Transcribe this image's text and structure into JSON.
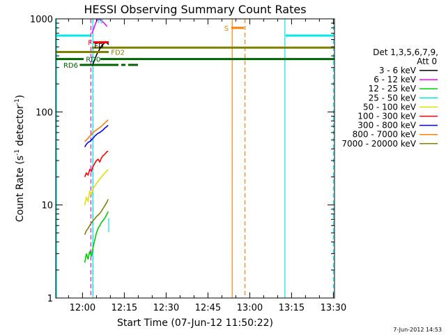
{
  "chart_data": {
    "type": "line",
    "title": "HESSI Observing Summary Count Rates",
    "xlabel": "Start Time (07-Jun-12 11:50:22)",
    "ylabel_main": "Count Rate (s",
    "ylabel_sup1": "-1",
    "ylabel_mid": " detector",
    "ylabel_sup2": "-1",
    "ylabel_end": ")",
    "y_scale": "log",
    "ylim": [
      1,
      1000
    ],
    "xlim_minutes": [
      0,
      100
    ],
    "x_ticks": [
      {
        "label": "12:00",
        "min": 9.6
      },
      {
        "label": "12:15",
        "min": 24.6
      },
      {
        "label": "12:30",
        "min": 39.6
      },
      {
        "label": "12:45",
        "min": 54.6
      },
      {
        "label": "13:00",
        "min": 69.6
      },
      {
        "label": "13:15",
        "min": 84.6
      },
      {
        "label": "13:30",
        "min": 99.6
      }
    ],
    "y_ticks": [
      {
        "label": "1",
        "value": 1
      },
      {
        "label": "10",
        "value": 10
      },
      {
        "label": "100",
        "value": 100
      },
      {
        "label": "1000",
        "value": 1000
      }
    ],
    "legend": {
      "header1": "Det 1,3,5,6,7,9,",
      "header2": "Att 0",
      "position": "right"
    },
    "series": [
      {
        "name": "3 - 6 keV",
        "color": "#000000",
        "x": [
          13.0,
          13.6,
          14.2,
          14.8,
          15.4,
          16.0,
          16.6,
          17.2,
          17.8,
          18.4,
          19.0
        ],
        "y": [
          310,
          340,
          380,
          420,
          450,
          490,
          520,
          540,
          560,
          550,
          530
        ]
      },
      {
        "name": "6 - 12 keV",
        "color": "#ff00ff",
        "x": [
          13.0,
          13.6,
          14.2,
          14.8,
          15.4,
          16.0,
          16.6,
          17.2,
          17.8,
          18.4
        ],
        "y": [
          700,
          780,
          880,
          960,
          990,
          980,
          950,
          910,
          870,
          830
        ]
      },
      {
        "name": "12 - 25 keV",
        "color": "#00d000",
        "x": [
          10.4,
          11.0,
          11.6,
          12.2,
          12.8,
          13.4,
          14.0,
          14.6,
          15.2,
          15.8,
          16.4,
          17.0,
          17.6,
          18.2,
          18.8
        ],
        "y": [
          2.4,
          3.0,
          2.6,
          3.2,
          2.8,
          3.5,
          4.2,
          5.0,
          5.6,
          6.0,
          6.5,
          6.8,
          7.2,
          7.8,
          8.5
        ]
      },
      {
        "name": "25 - 50 keV",
        "color": "#00e8e8",
        "x": [
          19.0
        ],
        "y": [
          6.0
        ]
      },
      {
        "name": "50 - 100 keV",
        "color": "#e0e000",
        "x": [
          10.4,
          11.0,
          11.6,
          12.2,
          12.8,
          13.4,
          14.0,
          14.6,
          15.2,
          15.8,
          16.4,
          17.0,
          17.6,
          18.2,
          18.8
        ],
        "y": [
          10,
          12,
          11,
          14,
          13,
          15,
          16,
          17,
          18,
          19,
          20,
          21,
          22,
          23,
          24
        ]
      },
      {
        "name": "100 - 300 keV",
        "color": "#ff0000",
        "x": [
          10.4,
          11.0,
          11.6,
          12.2,
          12.8,
          13.4,
          14.0,
          14.6,
          15.2,
          15.8,
          16.4,
          17.0,
          17.6,
          18.2,
          18.8
        ],
        "y": [
          20,
          22,
          21,
          24,
          23,
          26,
          28,
          30,
          31,
          29,
          32,
          34,
          35,
          37,
          38
        ]
      },
      {
        "name": "300 - 800 keV",
        "color": "#0000ff",
        "x": [
          10.4,
          11.0,
          11.6,
          12.2,
          12.8,
          13.4,
          14.0,
          14.6,
          15.2,
          15.8,
          16.4,
          17.0,
          17.6,
          18.2,
          18.8
        ],
        "y": [
          42,
          45,
          47,
          48,
          50,
          52,
          55,
          57,
          59,
          60,
          62,
          64,
          67,
          69,
          72
        ]
      },
      {
        "name": "800 - 7000 keV",
        "color": "#ff8000",
        "x": [
          10.4,
          11.0,
          11.6,
          12.2,
          12.8,
          13.4,
          14.0,
          14.6,
          15.2,
          15.8,
          16.4,
          17.0,
          17.6,
          18.2,
          18.8
        ],
        "y": [
          48,
          50,
          52,
          55,
          57,
          60,
          62,
          64,
          66,
          68,
          70,
          73,
          76,
          79,
          82
        ]
      },
      {
        "name": "7000 - 20000 keV",
        "color": "#808000",
        "x": [
          10.4,
          11.0,
          11.6,
          12.2,
          12.8,
          13.4,
          14.0,
          14.6,
          15.2,
          15.8,
          16.4,
          17.0,
          17.6,
          18.2,
          18.8
        ],
        "y": [
          4.8,
          5.3,
          5.6,
          6.0,
          6.4,
          6.8,
          7.1,
          7.5,
          7.8,
          8.1,
          8.6,
          9.2,
          9.8,
          10.5,
          11.5
        ]
      }
    ],
    "flag_bars": [
      {
        "label": "F",
        "color": "#ff0000",
        "y": 560,
        "segments": [
          [
            13.5,
            19.0
          ]
        ],
        "label_x": 13.0,
        "label_align": "end",
        "width": 3
      },
      {
        "label": "N",
        "color": "#00e8e8",
        "y": 960,
        "segments": [
          [
            14.5,
            14.6
          ]
        ],
        "label_x": 16.0,
        "label_align": "middle",
        "width": 2
      },
      {
        "label": "FD",
        "color": "#000000",
        "y": 520,
        "segments": [],
        "label_x": 13.8,
        "label_align": "start",
        "width": 2
      },
      {
        "label": "S",
        "color": "#ff8000",
        "y": 800,
        "segments": [
          [
            63.0,
            67.5
          ]
        ],
        "label_x": 62.0,
        "label_align": "end",
        "width": 3
      },
      {
        "label": "FD2",
        "color": "#808000",
        "y": 440,
        "segments": [
          [
            0,
            19.0
          ]
        ],
        "label_x": 19.8,
        "label_align": "start",
        "width": 3
      },
      {
        "label": "RD0",
        "color": "#006400",
        "y": 370,
        "segments": [
          [
            0,
            10.0
          ]
        ],
        "label_x": 10.8,
        "label_align": "start",
        "width": 3
      },
      {
        "label": "RD6",
        "color": "#006400",
        "y": 320,
        "segments": [
          [
            8.6,
            22.5
          ],
          [
            23.5,
            25.0
          ],
          [
            26.0,
            29.5
          ]
        ],
        "label_x": 8.0,
        "label_align": "end",
        "width": 3
      }
    ],
    "band_lines": [
      {
        "color": "#00e8e8",
        "y": 660,
        "segments": [
          [
            0,
            12.5
          ],
          [
            82.5,
            99.6
          ]
        ],
        "width": 3
      },
      {
        "color": "#808000",
        "y": 490,
        "segments": [
          [
            13.0,
            100
          ]
        ],
        "width": 3
      },
      {
        "color": "#006400",
        "y": 370,
        "segments": [
          [
            16.0,
            100
          ]
        ],
        "width": 3
      }
    ],
    "vlines": [
      {
        "color": "#00e8e8",
        "x": 0.3,
        "style": "solid"
      },
      {
        "color": "#00e8e8",
        "x": 13.3,
        "style": "solid"
      },
      {
        "color": "#ff00ff",
        "x": 12.6,
        "style": "dashed"
      },
      {
        "color": "#00e8e8",
        "x": 13.4,
        "style": "dashed"
      },
      {
        "color": "#ff8000",
        "x": 63.3,
        "style": "solid"
      },
      {
        "color": "#ff8000",
        "x": 67.9,
        "style": "dashed"
      },
      {
        "color": "#00e8e8",
        "x": 82.2,
        "style": "solid"
      },
      {
        "color": "#00e8e8",
        "x": 99.6,
        "style": "dashed"
      }
    ],
    "grid": false
  },
  "footer": {
    "stamp": "7-Jun-2012 14:53"
  }
}
